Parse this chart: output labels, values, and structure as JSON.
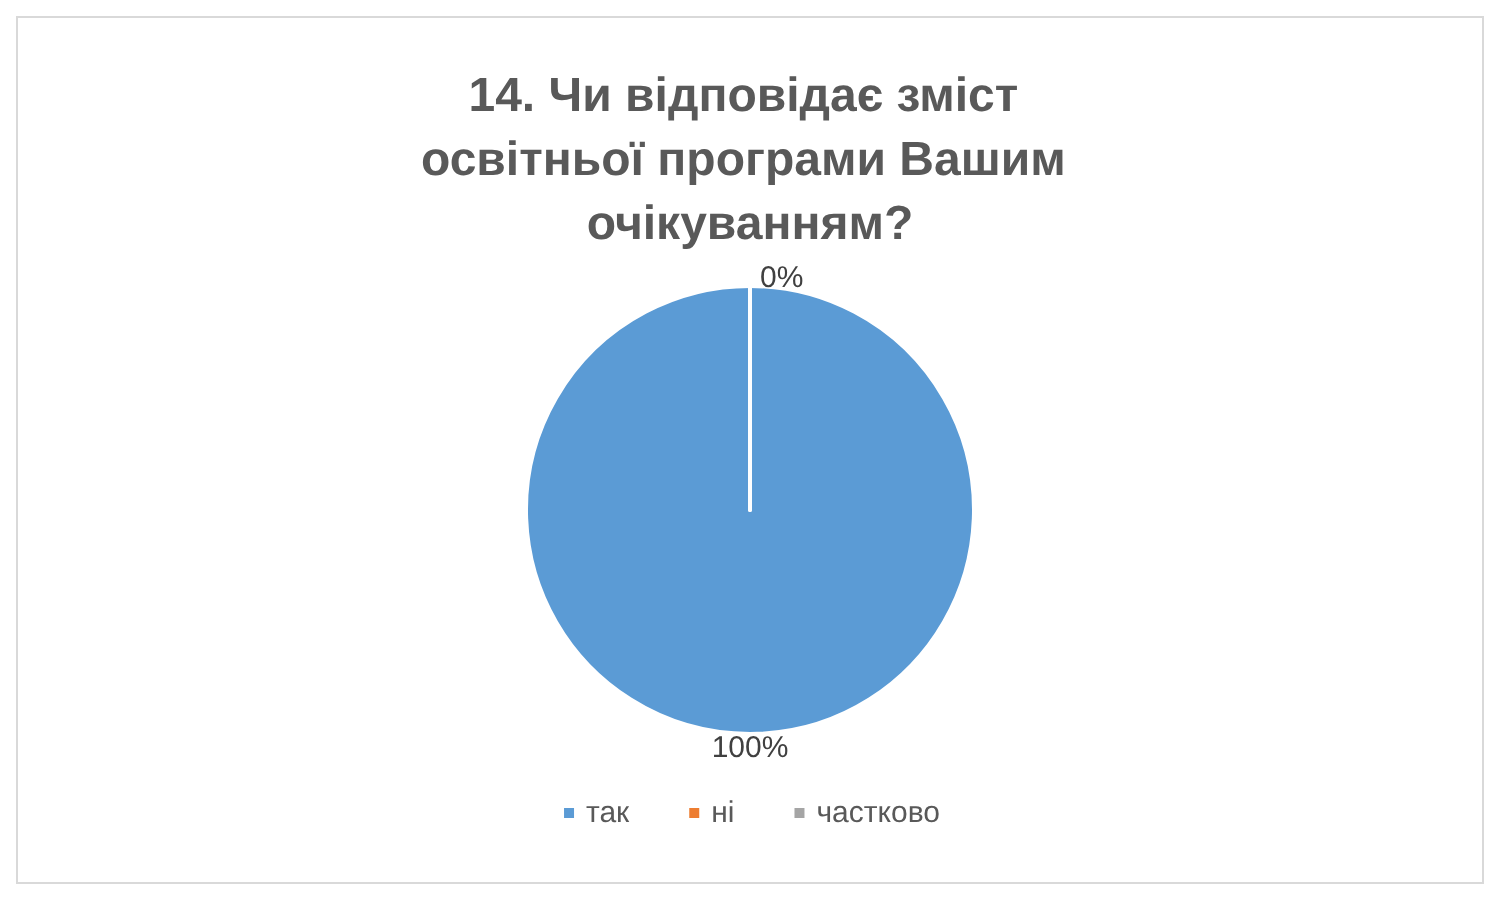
{
  "chart_data": {
    "type": "pie",
    "title": "14. Чи відповідає зміст освітньої програми Вашим очікуванням?",
    "categories": [
      "так",
      "ні",
      "частково"
    ],
    "values": [
      100,
      0,
      0
    ],
    "colors": [
      "#5b9bd5",
      "#ed7d31",
      "#a5a5a5"
    ],
    "value_labels": [
      "100%",
      "0%",
      null
    ],
    "legend": "bottom"
  }
}
